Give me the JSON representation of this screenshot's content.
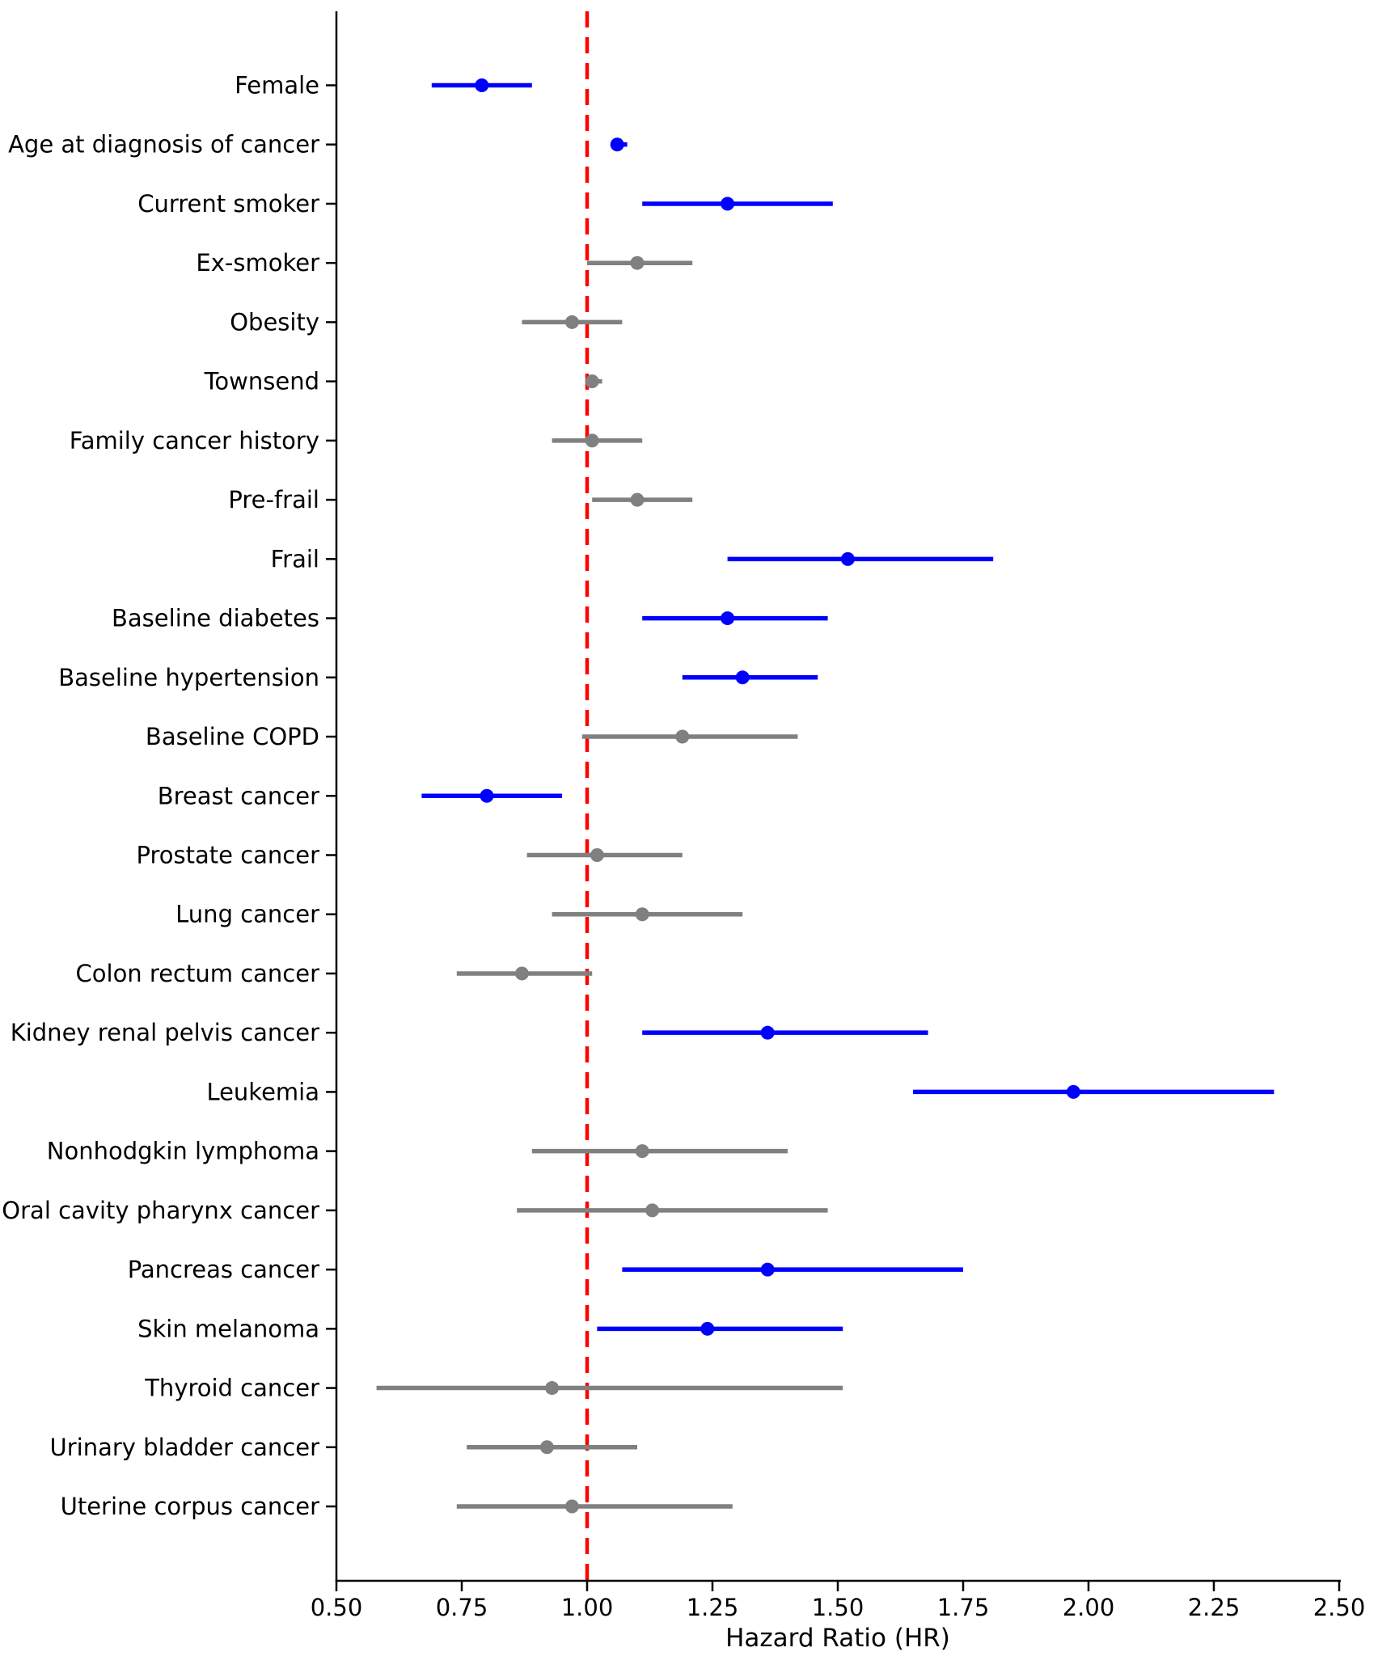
{
  "chart_data": {
    "type": "scatter",
    "variant": "forest-plot-horizontal-error-bars",
    "title": "",
    "xlabel": "Hazard Ratio (HR)",
    "ylabel": "",
    "xlim": [
      0.5,
      2.5
    ],
    "x_ticks": [
      0.5,
      0.75,
      1.0,
      1.25,
      1.5,
      1.75,
      2.0,
      2.25,
      2.5
    ],
    "x_tick_labels": [
      "0.50",
      "0.75",
      "1.00",
      "1.25",
      "1.50",
      "1.75",
      "2.00",
      "2.25",
      "2.50"
    ],
    "reference_line_x": 1.0,
    "grid": false,
    "legend": "none",
    "marker": "circle",
    "error_bars": "horizontal-ci",
    "colors": {
      "significant": "#0000ff",
      "nonsignificant": "#808080",
      "reference": "#ff0000",
      "axis": "#000000",
      "text": "#000000",
      "background": "#ffffff"
    },
    "rows": [
      {
        "label": "Female",
        "hr": 0.79,
        "ci_low": 0.69,
        "ci_high": 0.89,
        "significant": true
      },
      {
        "label": "Age at diagnosis of cancer",
        "hr": 1.06,
        "ci_low": 1.05,
        "ci_high": 1.08,
        "significant": true
      },
      {
        "label": "Current smoker",
        "hr": 1.28,
        "ci_low": 1.11,
        "ci_high": 1.49,
        "significant": true
      },
      {
        "label": "Ex-smoker",
        "hr": 1.1,
        "ci_low": 1.0,
        "ci_high": 1.21,
        "significant": false
      },
      {
        "label": "Obesity",
        "hr": 0.97,
        "ci_low": 0.87,
        "ci_high": 1.07,
        "significant": false
      },
      {
        "label": "Townsend",
        "hr": 1.01,
        "ci_low": 1.0,
        "ci_high": 1.03,
        "significant": false
      },
      {
        "label": "Family cancer history",
        "hr": 1.01,
        "ci_low": 0.93,
        "ci_high": 1.11,
        "significant": false
      },
      {
        "label": "Pre-frail",
        "hr": 1.1,
        "ci_low": 1.01,
        "ci_high": 1.21,
        "significant": false
      },
      {
        "label": "Frail",
        "hr": 1.52,
        "ci_low": 1.28,
        "ci_high": 1.81,
        "significant": true
      },
      {
        "label": "Baseline diabetes",
        "hr": 1.28,
        "ci_low": 1.11,
        "ci_high": 1.48,
        "significant": true
      },
      {
        "label": "Baseline hypertension",
        "hr": 1.31,
        "ci_low": 1.19,
        "ci_high": 1.46,
        "significant": true
      },
      {
        "label": "Baseline COPD",
        "hr": 1.19,
        "ci_low": 0.99,
        "ci_high": 1.42,
        "significant": false
      },
      {
        "label": "Breast cancer",
        "hr": 0.8,
        "ci_low": 0.67,
        "ci_high": 0.95,
        "significant": true
      },
      {
        "label": "Prostate cancer",
        "hr": 1.02,
        "ci_low": 0.88,
        "ci_high": 1.19,
        "significant": false
      },
      {
        "label": "Lung cancer",
        "hr": 1.11,
        "ci_low": 0.93,
        "ci_high": 1.31,
        "significant": false
      },
      {
        "label": "Colon rectum cancer",
        "hr": 0.87,
        "ci_low": 0.74,
        "ci_high": 1.01,
        "significant": false
      },
      {
        "label": "Kidney renal pelvis cancer",
        "hr": 1.36,
        "ci_low": 1.11,
        "ci_high": 1.68,
        "significant": true
      },
      {
        "label": "Leukemia",
        "hr": 1.97,
        "ci_low": 1.65,
        "ci_high": 2.37,
        "significant": true
      },
      {
        "label": "Nonhodgkin lymphoma",
        "hr": 1.11,
        "ci_low": 0.89,
        "ci_high": 1.4,
        "significant": false
      },
      {
        "label": "Oral cavity pharynx cancer",
        "hr": 1.13,
        "ci_low": 0.86,
        "ci_high": 1.48,
        "significant": false
      },
      {
        "label": "Pancreas cancer",
        "hr": 1.36,
        "ci_low": 1.07,
        "ci_high": 1.75,
        "significant": true
      },
      {
        "label": "Skin melanoma",
        "hr": 1.24,
        "ci_low": 1.02,
        "ci_high": 1.51,
        "significant": true
      },
      {
        "label": "Thyroid cancer",
        "hr": 0.93,
        "ci_low": 0.58,
        "ci_high": 1.51,
        "significant": false
      },
      {
        "label": "Urinary bladder cancer",
        "hr": 0.92,
        "ci_low": 0.76,
        "ci_high": 1.1,
        "significant": false
      },
      {
        "label": "Uterine corpus cancer",
        "hr": 0.97,
        "ci_low": 0.74,
        "ci_high": 1.29,
        "significant": false
      }
    ]
  }
}
